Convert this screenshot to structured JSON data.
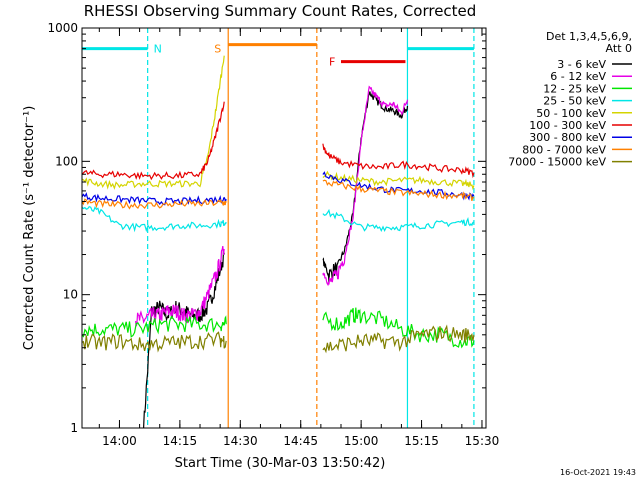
{
  "chart_data": {
    "type": "line",
    "title": "RHESSI Observing Summary Count Rates, Corrected",
    "xlabel": "Start Time (30-Mar-03 13:50:42)",
    "ylabel": "Corrected Count Rate (s⁻¹ detector⁻¹)",
    "yscale": "log",
    "xlim": [
      "13:50:42",
      "15:31:00"
    ],
    "ylim": [
      1,
      1000
    ],
    "x_ticks": [
      "14:00",
      "14:15",
      "14:30",
      "14:45",
      "15:00",
      "15:15",
      "15:30"
    ],
    "y_ticks": [
      "1",
      "10",
      "100",
      "1000"
    ],
    "footer_date": "16-Oct-2021 19:43",
    "legend": {
      "title_line1": "Det 1,3,4,5,6,9,",
      "title_line2": "Att 0",
      "entries": [
        {
          "label": "3 - 6 keV",
          "color": "#000000"
        },
        {
          "label": "6 - 12 keV",
          "color": "#e600e6"
        },
        {
          "label": "12 - 25 keV",
          "color": "#00e600"
        },
        {
          "label": "25 - 50 keV",
          "color": "#00e6e6"
        },
        {
          "label": "50 - 100 keV",
          "color": "#d4d400"
        },
        {
          "label": "100 - 300 keV",
          "color": "#e60000"
        },
        {
          "label": "300 - 800 keV",
          "color": "#0000e6"
        },
        {
          "label": "800 - 7000 keV",
          "color": "#ff8000"
        },
        {
          "label": "7000 - 15000 keV",
          "color": "#808000"
        }
      ]
    },
    "flags": [
      {
        "label": "N",
        "color": "#00e6e6",
        "segments": [
          [
            "13:50:42",
            "14:07:00"
          ],
          [
            "15:11:30",
            "15:28:00"
          ]
        ],
        "value": 700
      },
      {
        "label": "S",
        "color": "#ff8000",
        "segments": [
          [
            "14:27:00",
            "14:49:00"
          ]
        ],
        "value": 750
      },
      {
        "label": "F",
        "color": "#e60000",
        "segments": [
          [
            "14:55:00",
            "15:11:00"
          ]
        ],
        "value": 560
      }
    ],
    "vlines": [
      {
        "x": "14:07:00",
        "color": "#00e6e6",
        "style": "dashed"
      },
      {
        "x": "14:27:00",
        "color": "#ff8000",
        "style": "solid"
      },
      {
        "x": "14:49:00",
        "color": "#ff8000",
        "style": "dashed"
      },
      {
        "x": "15:11:30",
        "color": "#00e6e6",
        "style": "solid"
      },
      {
        "x": "15:28:00",
        "color": "#00e6e6",
        "style": "dashed"
      }
    ],
    "series": [
      {
        "name": "3 - 6 keV",
        "color": "#000000",
        "segments": [
          {
            "x": [
              "14:06:00",
              "14:08:00",
              "14:10:00",
              "14:12:00",
              "14:14:00",
              "14:16:00",
              "14:18:00",
              "14:20:00",
              "14:22:00",
              "14:24:00",
              "14:26:00"
            ],
            "y": [
              1.0,
              7.5,
              8.0,
              7.0,
              8.0,
              7.5,
              7.0,
              7.0,
              8.0,
              12,
              20
            ]
          },
          {
            "x": [
              "14:50:30",
              "14:52:00",
              "14:54:00",
              "14:56:00",
              "14:58:00",
              "15:00:00",
              "15:02:00",
              "15:04:00",
              "15:06:00",
              "15:08:00",
              "15:10:00",
              "15:11:30"
            ],
            "y": [
              18,
              14,
              16,
              22,
              40,
              150,
              330,
              280,
              250,
              240,
              220,
              260
            ]
          }
        ]
      },
      {
        "name": "6 - 12 keV",
        "color": "#e600e6",
        "segments": [
          {
            "x": [
              "14:04:00",
              "14:06:00",
              "14:08:00",
              "14:10:00",
              "14:12:00",
              "14:14:00",
              "14:16:00",
              "14:18:00",
              "14:20:00",
              "14:22:00",
              "14:24:00",
              "14:26:00"
            ],
            "y": [
              6.5,
              6.5,
              7.0,
              7.0,
              7.5,
              7.5,
              7.0,
              7.0,
              7.5,
              10,
              14,
              22
            ]
          },
          {
            "x": [
              "14:50:30",
              "14:52:00",
              "14:54:00",
              "14:56:00",
              "14:58:00",
              "15:00:00",
              "15:02:00",
              "15:04:00",
              "15:06:00",
              "15:08:00",
              "15:10:00",
              "15:11:30"
            ],
            "y": [
              15,
              12,
              14,
              20,
              38,
              140,
              350,
              300,
              260,
              270,
              230,
              290
            ]
          }
        ]
      },
      {
        "name": "12 - 25 keV",
        "color": "#00e600",
        "segments": [
          {
            "x": [
              "13:50:42",
              "13:55:00",
              "14:00:00",
              "14:05:00",
              "14:10:00",
              "14:15:00",
              "14:20:00",
              "14:25:00",
              "14:26:30"
            ],
            "y": [
              5.5,
              5.5,
              5.5,
              5.5,
              6.0,
              6.0,
              6.0,
              6.0,
              6.0
            ]
          },
          {
            "x": [
              "14:50:30",
              "14:55:00",
              "14:58:00",
              "15:00:00",
              "15:05:00",
              "15:10:00",
              "15:15:00",
              "15:20:00",
              "15:25:00",
              "15:28:00"
            ],
            "y": [
              6.5,
              6.0,
              7.0,
              7.0,
              6.5,
              5.5,
              5.0,
              5.0,
              4.5,
              4.5
            ]
          }
        ]
      },
      {
        "name": "25 - 50 keV",
        "color": "#00e6e6",
        "segments": [
          {
            "x": [
              "13:50:42",
              "13:55:00",
              "14:00:00",
              "14:05:00",
              "14:10:00",
              "14:15:00",
              "14:20:00",
              "14:25:00",
              "14:26:30"
            ],
            "y": [
              45,
              42,
              33,
              32,
              32,
              33,
              33,
              34,
              35
            ]
          },
          {
            "x": [
              "14:50:30",
              "14:55:00",
              "15:00:00",
              "15:05:00",
              "15:10:00",
              "15:15:00",
              "15:20:00",
              "15:25:00",
              "15:28:00"
            ],
            "y": [
              42,
              38,
              32,
              32,
              32,
              33,
              34,
              35,
              35
            ]
          }
        ]
      },
      {
        "name": "50 - 100 keV",
        "color": "#d4d400",
        "segments": [
          {
            "x": [
              "13:50:42",
              "13:55:00",
              "14:00:00",
              "14:05:00",
              "14:10:00",
              "14:15:00",
              "14:20:00",
              "14:22:00",
              "14:24:00",
              "14:26:00"
            ],
            "y": [
              72,
              68,
              66,
              68,
              68,
              68,
              68,
              110,
              250,
              620
            ]
          },
          {
            "x": [
              "14:50:30",
              "14:55:00",
              "15:00:00",
              "15:05:00",
              "15:10:00",
              "15:15:00",
              "15:20:00",
              "15:25:00",
              "15:28:00"
            ],
            "y": [
              80,
              75,
              72,
              70,
              72,
              72,
              70,
              68,
              66
            ]
          }
        ]
      },
      {
        "name": "100 - 300 keV",
        "color": "#e60000",
        "segments": [
          {
            "x": [
              "13:50:42",
              "13:55:00",
              "14:00:00",
              "14:05:00",
              "14:10:00",
              "14:15:00",
              "14:20:00",
              "14:22:00",
              "14:24:00",
              "14:26:00"
            ],
            "y": [
              82,
              80,
              80,
              78,
              78,
              78,
              80,
              100,
              160,
              280
            ]
          },
          {
            "x": [
              "14:50:30",
              "14:52:00",
              "14:55:00",
              "15:00:00",
              "15:05:00",
              "15:10:00",
              "15:15:00",
              "15:20:00",
              "15:25:00",
              "15:28:00"
            ],
            "y": [
              130,
              110,
              98,
              92,
              90,
              95,
              92,
              88,
              86,
              82
            ]
          }
        ]
      },
      {
        "name": "300 - 800 keV",
        "color": "#0000e6",
        "segments": [
          {
            "x": [
              "13:50:42",
              "13:55:00",
              "14:00:00",
              "14:05:00",
              "14:10:00",
              "14:15:00",
              "14:20:00",
              "14:25:00",
              "14:26:30"
            ],
            "y": [
              55,
              53,
              52,
              51,
              50,
              50,
              51,
              52,
              52
            ]
          },
          {
            "x": [
              "14:50:30",
              "14:55:00",
              "15:00:00",
              "15:05:00",
              "15:10:00",
              "15:15:00",
              "15:20:00",
              "15:25:00",
              "15:28:00"
            ],
            "y": [
              82,
              72,
              66,
              62,
              60,
              60,
              58,
              56,
              55
            ]
          }
        ]
      },
      {
        "name": "800 - 7000 keV",
        "color": "#ff8000",
        "segments": [
          {
            "x": [
              "13:50:42",
              "13:55:00",
              "14:00:00",
              "14:05:00",
              "14:10:00",
              "14:15:00",
              "14:20:00",
              "14:25:00",
              "14:26:30"
            ],
            "y": [
              50,
              48,
              47,
              47,
              47,
              48,
              48,
              49,
              49
            ]
          },
          {
            "x": [
              "14:50:30",
              "14:55:00",
              "15:00:00",
              "15:05:00",
              "15:10:00",
              "15:15:00",
              "15:20:00",
              "15:25:00",
              "15:28:00"
            ],
            "y": [
              70,
              66,
              62,
              60,
              58,
              57,
              56,
              55,
              53
            ]
          }
        ]
      },
      {
        "name": "7000 - 15000 keV",
        "color": "#808000",
        "segments": [
          {
            "x": [
              "13:50:42",
              "13:55:00",
              "14:00:00",
              "14:05:00",
              "14:10:00",
              "14:15:00",
              "14:20:00",
              "14:25:00",
              "14:26:30"
            ],
            "y": [
              4.5,
              4.3,
              4.5,
              4.2,
              4.3,
              4.4,
              4.5,
              4.6,
              4.5
            ]
          },
          {
            "x": [
              "14:50:30",
              "14:55:00",
              "15:00:00",
              "15:05:00",
              "15:10:00",
              "15:15:00",
              "15:20:00",
              "15:25:00",
              "15:28:00"
            ],
            "y": [
              4.0,
              4.2,
              4.5,
              4.5,
              4.4,
              5.0,
              5.2,
              5.0,
              5.0
            ]
          }
        ]
      }
    ]
  }
}
